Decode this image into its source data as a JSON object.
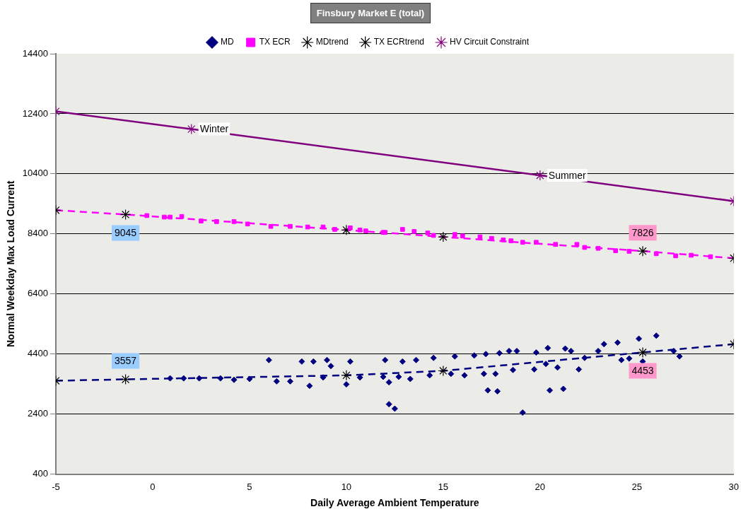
{
  "chart_data": {
    "type": "scatter",
    "title": "Finsbury Market E (total)",
    "xlabel": "Daily Average Ambient Temperature",
    "ylabel": "Normal Weekday Max Load Current",
    "xlim": [
      -5,
      30
    ],
    "xticks": [
      -5,
      0,
      5,
      10,
      15,
      20,
      25,
      30
    ],
    "ylim": [
      400,
      14400
    ],
    "yticks": [
      400,
      2400,
      4400,
      6400,
      8400,
      10400,
      12400,
      14400
    ],
    "grid": "y",
    "legend": "top",
    "annotations": [
      {
        "text": "Winter",
        "x": 2,
        "y": 11894
      },
      {
        "text": "Summer",
        "x": 20,
        "y": 10349
      }
    ],
    "series": [
      {
        "name": "MD",
        "marker": "diamond",
        "color": "#000080",
        "x": [
          0.9,
          1.6,
          2.4,
          3.5,
          4.2,
          5.0,
          6.0,
          6.4,
          7.1,
          7.7,
          8.1,
          8.3,
          8.8,
          9.0,
          9.2,
          10.0,
          10.2,
          10.7,
          11.9,
          12.0,
          12.2,
          12.2,
          12.5,
          12.7,
          12.9,
          13.3,
          13.6,
          14.3,
          14.5,
          15.4,
          15.6,
          16.1,
          16.6,
          17.1,
          17.2,
          17.3,
          17.7,
          17.8,
          17.9,
          18.4,
          18.6,
          18.8,
          19.1,
          19.7,
          19.8,
          20.3,
          20.4,
          20.5,
          20.9,
          21.2,
          21.3,
          21.6,
          22.0,
          22.3,
          23.0,
          23.3,
          24.0,
          24.2,
          24.6,
          25.1,
          25.3,
          26.0,
          26.9,
          27.2
        ],
        "values": [
          3590,
          3590,
          3590,
          3590,
          3540,
          3570,
          4200,
          3490,
          3490,
          4150,
          3340,
          4150,
          3620,
          4200,
          4000,
          3390,
          4150,
          3620,
          3640,
          4200,
          3460,
          2730,
          2580,
          3640,
          4150,
          3570,
          4200,
          3690,
          4270,
          3740,
          4320,
          3690,
          4350,
          3740,
          4400,
          3190,
          3740,
          3160,
          4430,
          4500,
          3870,
          4500,
          2450,
          3890,
          4450,
          4070,
          4600,
          3190,
          3950,
          3240,
          4580,
          4500,
          3890,
          4270,
          4500,
          4730,
          4780,
          4200,
          4250,
          4910,
          4150,
          5010,
          4500,
          4320
        ]
      },
      {
        "name": "TX ECR",
        "marker": "square",
        "color": "#ff00ff",
        "x": [
          -0.3,
          0.6,
          0.9,
          1.5,
          2.5,
          3.3,
          4.2,
          4.9,
          6.1,
          7.1,
          8.0,
          8.8,
          9.4,
          10.2,
          10.7,
          11.0,
          11.9,
          12.0,
          12.9,
          13.5,
          14.2,
          14.5,
          15.6,
          16.0,
          16.9,
          17.5,
          18.1,
          18.5,
          19.1,
          19.8,
          20.8,
          21.9,
          22.3,
          23.0,
          23.9,
          24.6,
          26.0,
          27.0,
          27.8,
          28.8
        ],
        "values": [
          9010,
          8960,
          8960,
          8980,
          8830,
          8810,
          8810,
          8730,
          8650,
          8650,
          8630,
          8630,
          8550,
          8600,
          8530,
          8500,
          8450,
          8450,
          8550,
          8480,
          8430,
          8350,
          8380,
          8330,
          8300,
          8250,
          8200,
          8170,
          8120,
          8120,
          8050,
          8050,
          7950,
          7920,
          7840,
          7820,
          7740,
          7670,
          7690,
          7640
        ]
      },
      {
        "name": "MDtrend",
        "type": "line",
        "line_style": "dashed",
        "marker": "cross",
        "color": "#000080",
        "colors": [
          "#000000",
          "#000000",
          "#000000",
          "#000000",
          "#000000",
          "#000000"
        ],
        "x": [
          -5,
          -1.4,
          10,
          15,
          25.3,
          30
        ],
        "values": [
          3510,
          3557,
          3690,
          3840,
          4453,
          4730
        ],
        "value_labels": [
          null,
          "3557",
          null,
          null,
          "4453",
          null
        ]
      },
      {
        "name": "TX ECRtrend",
        "type": "line",
        "line_style": "dashed",
        "marker": "cross",
        "color": "#ff00ff",
        "colors": [
          "#000000",
          "#000000",
          "#000000",
          "#000000",
          "#000000",
          "#000000"
        ],
        "x": [
          -5,
          -1.4,
          10,
          15,
          25.3,
          30
        ],
        "values": [
          9190,
          9045,
          8530,
          8300,
          7826,
          7590
        ],
        "value_labels": [
          null,
          "9045",
          null,
          null,
          "7826",
          null
        ]
      },
      {
        "name": "HV Circuit Constraint",
        "type": "line",
        "line_style": "solid",
        "marker": "cross",
        "color": "#800080",
        "x": [
          -5,
          2,
          20,
          30
        ],
        "values": [
          12480,
          11890,
          10350,
          9490
        ]
      }
    ]
  }
}
